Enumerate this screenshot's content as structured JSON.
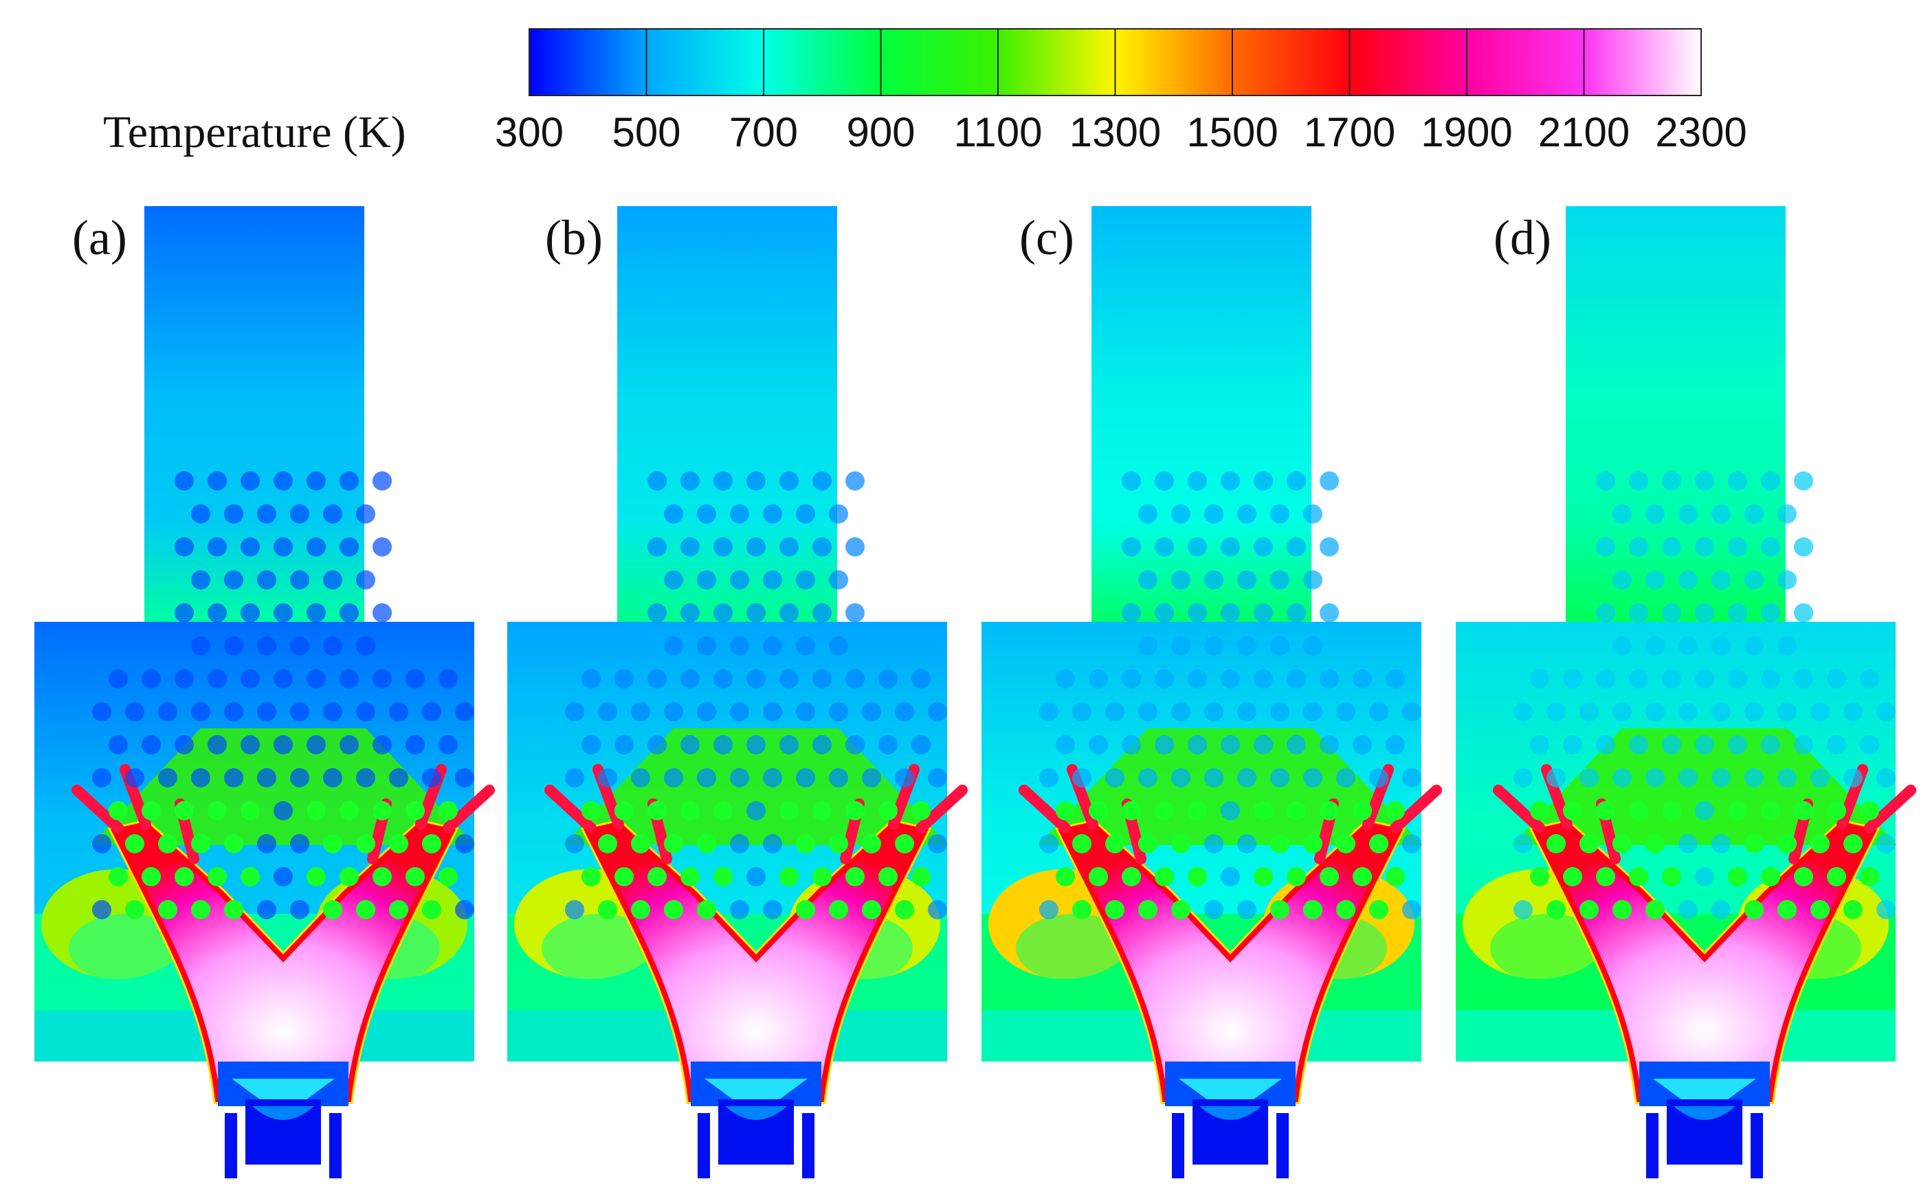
{
  "chart_data": {
    "type": "heatmap",
    "quantity": "Temperature (K)",
    "colorbar": {
      "title": "Temperature (K)",
      "min": 300,
      "max": 2300,
      "ticks": [
        "300",
        "500",
        "700",
        "900",
        "1100",
        "1300",
        "1500",
        "1700",
        "1900",
        "2100",
        "2300"
      ],
      "stops": [
        {
          "value": 300,
          "color": "#0000ff"
        },
        {
          "value": 500,
          "color": "#00a6ff"
        },
        {
          "value": 700,
          "color": "#00ffe6"
        },
        {
          "value": 900,
          "color": "#00ff3c"
        },
        {
          "value": 1100,
          "color": "#3cf000"
        },
        {
          "value": 1300,
          "color": "#fff500"
        },
        {
          "value": 1500,
          "color": "#ff6a00"
        },
        {
          "value": 1700,
          "color": "#ff0010"
        },
        {
          "value": 1900,
          "color": "#ff00a0"
        },
        {
          "value": 2100,
          "color": "#ff34f4"
        },
        {
          "value": 2300,
          "color": "#ffffff"
        }
      ]
    },
    "panels": [
      {
        "label": "(a)",
        "upper_section_temperature": 430,
        "lower_section_temperature": 780,
        "recirculation_zone_temperature": 1200,
        "flame_core_temperature": 2300
      },
      {
        "label": "(b)",
        "upper_section_temperature": 500,
        "lower_section_temperature": 810,
        "recirculation_zone_temperature": 1250,
        "flame_core_temperature": 2300
      },
      {
        "label": "(c)",
        "upper_section_temperature": 550,
        "lower_section_temperature": 850,
        "recirculation_zone_temperature": 1350,
        "flame_core_temperature": 2300
      },
      {
        "label": "(d)",
        "upper_section_temperature": 620,
        "lower_section_temperature": 870,
        "recirculation_zone_temperature": 1250,
        "flame_core_temperature": 2300
      }
    ]
  }
}
